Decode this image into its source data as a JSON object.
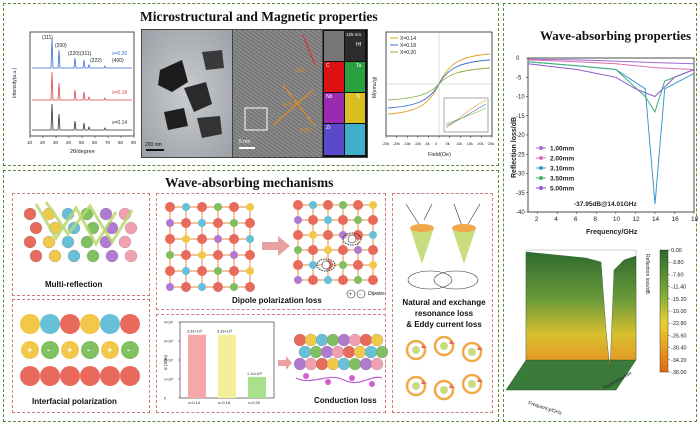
{
  "top_panel": {
    "title": "Microstructural and Magnetic properties",
    "xrd": {
      "xlabel": "2θ/degree",
      "ylabel": "Intensity(a.u.)",
      "peaks": [
        "(111)",
        "(200)",
        "(220)",
        "(311)",
        "(222)",
        "(400)"
      ],
      "series": [
        "x=0.20",
        "x=0.18",
        "x=0.14"
      ],
      "series_colors": [
        "#3a6fd0",
        "#d94848",
        "#333333"
      ],
      "xticks": [
        "10",
        "20",
        "30",
        "40",
        "50",
        "60",
        "70",
        "80",
        "90"
      ]
    },
    "tem": {
      "scale": "200 nm"
    },
    "hrtem": {
      "scale": "5 nm",
      "angle": "125.3°",
      "planes": [
        "(111)",
        "(200)"
      ]
    },
    "eds": {
      "scale": "125 nm",
      "elements": [
        "C",
        "Hf",
        "Nb",
        "Ta",
        "Zr",
        "Ti"
      ]
    },
    "mh": {
      "xlabel": "Field(Oe)",
      "ylabel": "M(emu/g)",
      "legend": [
        "X=0.14",
        "X=0.18",
        "X=0.20"
      ],
      "legend_colors": [
        "#e0a020",
        "#3a6fd0",
        "#8db040"
      ],
      "xticks": [
        "-25k",
        "-20k",
        "-15k",
        "-10k",
        "-5k",
        "0",
        "5k",
        "10k",
        "15k",
        "20k",
        "25k"
      ]
    }
  },
  "mechanisms": {
    "title": "Wave-absorbing mechanisms",
    "multi_reflection": "Multi-reflection",
    "interfacial": "Interfacial polarization",
    "dipole": "Dipole polarization loss",
    "conduction": "Conduction loss",
    "magnetic_loss": [
      "Natural and exchange",
      "resonance loss",
      "& Eddy current loss"
    ],
    "dipole_legend": [
      "Dipoles"
    ],
    "bar_chart": {
      "ylabel": "σ (S/m)",
      "categories": [
        "x=0.14",
        "x=0.18",
        "x=0.20"
      ],
      "labels": [
        "3.33×10⁵",
        "3.33×10⁵",
        "1.11×10⁵"
      ],
      "yticks": [
        "0",
        "1×10⁵",
        "2×10⁵",
        "3×10⁵",
        "4×10⁵"
      ],
      "colors": [
        "#f4a9a8",
        "#f5ee9a",
        "#a8e08c"
      ]
    }
  },
  "right_panel": {
    "title": "Wave-absorbing properties",
    "rl": {
      "ylabel": "Reflection loss/dB",
      "xlabel": "Frequency/GHz",
      "annotation": "-37.95dB@14.01GHz",
      "legend": [
        "1.00mm",
        "2.00mm",
        "3.10mm",
        "3.50mm",
        "5.00mm"
      ],
      "legend_colors": [
        "#a06ad0",
        "#e070b0",
        "#3a9ad0",
        "#40b070",
        "#8a5ad0"
      ],
      "xticks": [
        "2",
        "4",
        "6",
        "8",
        "10",
        "12",
        "14",
        "16",
        "18"
      ],
      "yticks": [
        "0",
        "-5",
        "-10",
        "-15",
        "-20",
        "-25",
        "-30",
        "-35",
        "-40"
      ]
    },
    "surface": {
      "zlabel": "Reflection loss/dB",
      "xlabel": "Frequency/GHz",
      "ylabel": "Thickness/mm",
      "colorbar": [
        "0.00",
        "-3.80",
        "-7.60",
        "-11.40",
        "-15.20",
        "-19.00",
        "-22.80",
        "-26.60",
        "-30.40",
        "-34.20",
        "-38.00"
      ]
    }
  },
  "chart_data": [
    {
      "type": "bar",
      "categories": [
        "x=0.14",
        "x=0.18",
        "x=0.20"
      ],
      "values": [
        333000,
        333000,
        111000
      ],
      "ylabel": "σ (S/m)",
      "ylim": [
        0,
        400000
      ]
    },
    {
      "type": "line",
      "xlabel": "Frequency/GHz",
      "ylabel": "Reflection loss/dB",
      "xlim": [
        1,
        18
      ],
      "ylim": [
        -40,
        0
      ],
      "series": [
        {
          "name": "1.00mm",
          "x": [
            1,
            6,
            10,
            14,
            18
          ],
          "values": [
            -0.3,
            -0.5,
            -0.8,
            -1.2,
            -1.5
          ]
        },
        {
          "name": "2.00mm",
          "x": [
            1,
            6,
            10,
            14,
            18
          ],
          "values": [
            -0.5,
            -1,
            -1.5,
            -2.5,
            -3
          ]
        },
        {
          "name": "3.10mm",
          "x": [
            1,
            6,
            10,
            13,
            14.01,
            15,
            18
          ],
          "values": [
            -1,
            -2,
            -3,
            -8,
            -37.95,
            -8,
            -4
          ]
        },
        {
          "name": "3.50mm",
          "x": [
            1,
            6,
            10,
            13,
            14,
            15,
            18
          ],
          "values": [
            -1,
            -2,
            -3,
            -10,
            -14,
            -6,
            -3
          ]
        },
        {
          "name": "5.00mm",
          "x": [
            1,
            6,
            10,
            12,
            14,
            16,
            18
          ],
          "values": [
            -1.5,
            -3,
            -5,
            -8,
            -10,
            -5,
            -3
          ]
        }
      ]
    }
  ]
}
